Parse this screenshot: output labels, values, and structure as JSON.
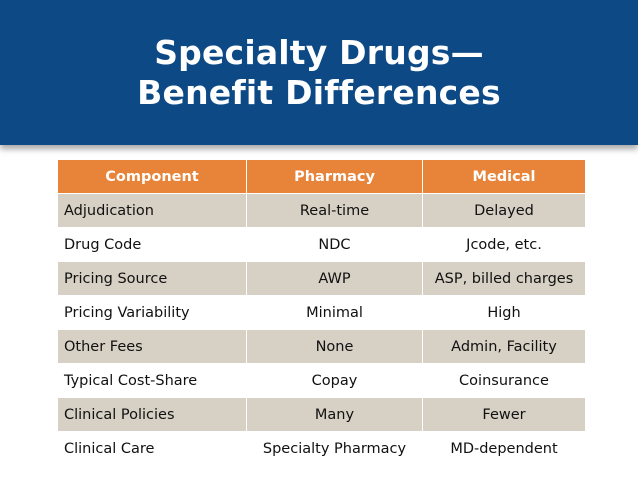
{
  "slide": {
    "title_line1": "Specialty Drugs—",
    "title_line2": "Benefit Differences"
  },
  "table": {
    "headers": [
      "Component",
      "Pharmacy",
      "Medical"
    ],
    "rows": [
      [
        "Adjudication",
        "Real-time",
        "Delayed"
      ],
      [
        "Drug Code",
        "NDC",
        "Jcode, etc."
      ],
      [
        "Pricing Source",
        "AWP",
        "ASP, billed charges"
      ],
      [
        "Pricing Variability",
        "Minimal",
        "High"
      ],
      [
        "Other Fees",
        "None",
        "Admin, Facility"
      ],
      [
        "Typical Cost-Share",
        "Copay",
        "Coinsurance"
      ],
      [
        "Clinical Policies",
        "Many",
        "Fewer"
      ],
      [
        "Clinical Care",
        "Specialty Pharmacy",
        "MD-dependent"
      ]
    ]
  },
  "colors": {
    "banner": "#0d4a85",
    "header": "#e8843a",
    "shaded_row": "#d7d0c4"
  }
}
